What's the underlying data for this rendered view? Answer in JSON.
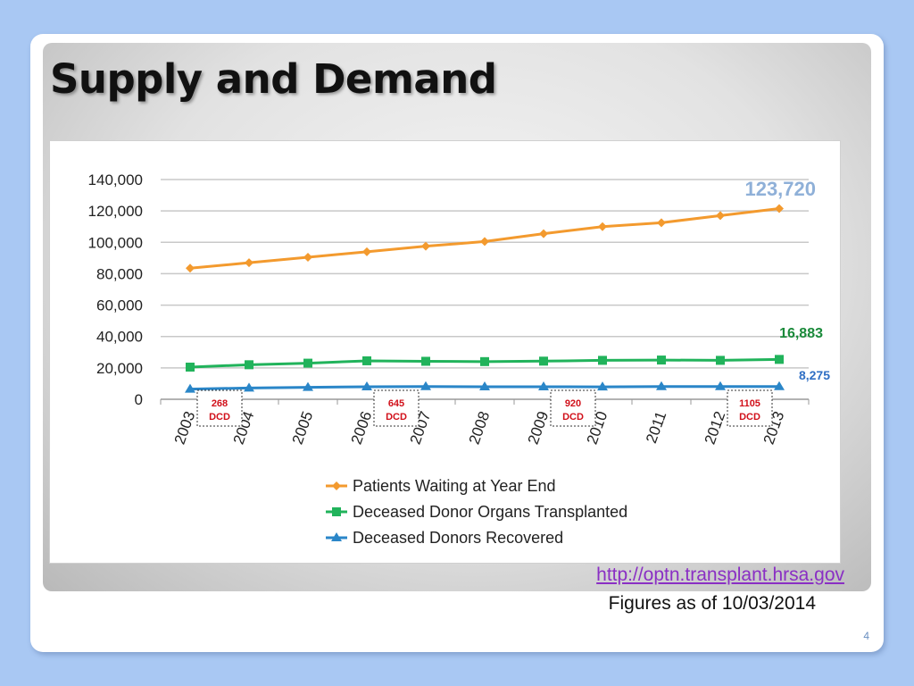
{
  "slide": {
    "title": "Supply and Demand",
    "source_link": "http://optn.transplant.hrsa.gov",
    "figures_date": "Figures as of 10/03/2014",
    "page_number": "4"
  },
  "colors": {
    "background": "#a9c8f3",
    "series_orange": "#f39a2e",
    "series_green": "#21b35b",
    "series_blue": "#2a86c8",
    "dcd_text": "#d1101a"
  },
  "chart_data": {
    "type": "line",
    "title": "",
    "xlabel": "",
    "ylabel": "",
    "x": [
      "2003",
      "2004",
      "2005",
      "2006",
      "2007",
      "2008",
      "2009",
      "2010",
      "2011",
      "2012",
      "2013"
    ],
    "ylim": [
      0,
      140000
    ],
    "yticks": [
      0,
      20000,
      40000,
      60000,
      80000,
      100000,
      120000,
      140000
    ],
    "ytick_labels": [
      "0",
      "20,000",
      "40,000",
      "60,000",
      "80,000",
      "100,000",
      "120,000",
      "140,000"
    ],
    "grid": "horizontal",
    "legend_position": "bottom",
    "series": [
      {
        "name": "Patients Waiting at Year End",
        "marker": "diamond",
        "values": [
          83500,
          87000,
          90500,
          94000,
          97500,
          100500,
          105500,
          110000,
          112500,
          117000,
          121500
        ]
      },
      {
        "name": "Deceased Donor Organs Transplanted",
        "marker": "square",
        "values": [
          20500,
          22000,
          23000,
          24500,
          24200,
          24000,
          24300,
          24800,
          25000,
          24800,
          25400
        ]
      },
      {
        "name": "Deceased Donors Recovered",
        "marker": "triangle",
        "values": [
          6500,
          7200,
          7600,
          8000,
          8100,
          8000,
          8000,
          7900,
          8100,
          8100,
          8100
        ]
      }
    ],
    "annotations": [
      {
        "text": "123,720",
        "series": 0
      },
      {
        "text": "16,883",
        "series": 1
      },
      {
        "text": "8,275",
        "series": 2
      }
    ],
    "dcd_labels": [
      {
        "year": "2003",
        "count": "268",
        "unit": "DCD"
      },
      {
        "year": "2006",
        "count": "645",
        "unit": "DCD"
      },
      {
        "year": "2009",
        "count": "920",
        "unit": "DCD"
      },
      {
        "year": "2012",
        "count": "1105",
        "unit": "DCD"
      }
    ]
  }
}
